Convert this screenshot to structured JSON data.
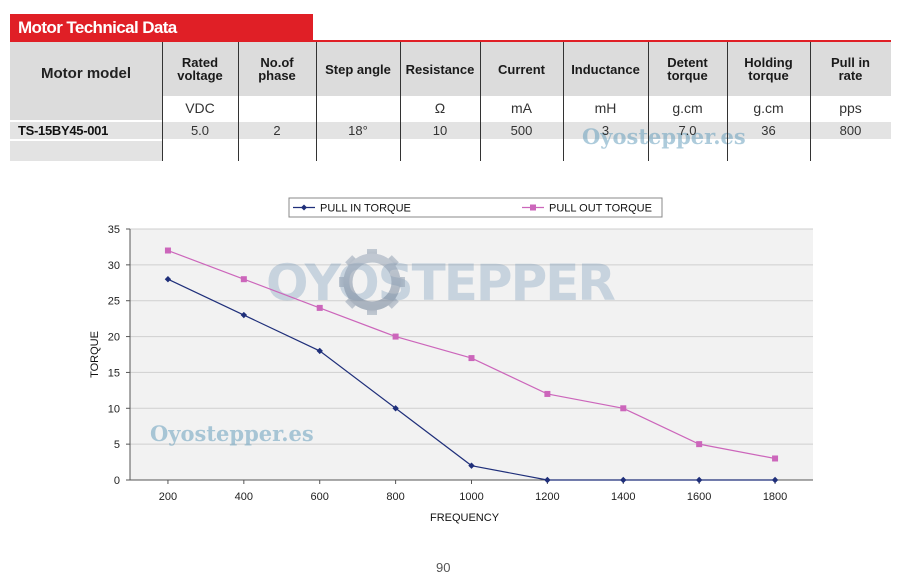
{
  "header": {
    "title": "Motor Technical Data"
  },
  "table": {
    "model_header": "Motor model",
    "columns": [
      {
        "label_lines": [
          "Rated",
          "voltage"
        ],
        "unit": "VDC",
        "value": "5.0"
      },
      {
        "label_lines": [
          "No.of",
          "phase"
        ],
        "unit": "",
        "value": "2"
      },
      {
        "label_lines": [
          "Step angle"
        ],
        "unit": "",
        "value": "18°"
      },
      {
        "label_lines": [
          "Resistance"
        ],
        "unit": "Ω",
        "value": "10"
      },
      {
        "label_lines": [
          "Current"
        ],
        "unit": "mA",
        "value": "500"
      },
      {
        "label_lines": [
          "Inductance"
        ],
        "unit": "mH",
        "value": "3"
      },
      {
        "label_lines": [
          "Detent",
          "torque"
        ],
        "unit": "g.cm",
        "value": "7.0"
      },
      {
        "label_lines": [
          "Holding",
          "torque"
        ],
        "unit": "g.cm",
        "value": "36"
      },
      {
        "label_lines": [
          "Pull in",
          "rate"
        ],
        "unit": "pps",
        "value": "800"
      }
    ],
    "model": "TS-15BY45-001"
  },
  "watermarks": {
    "table_text": "Oyostepper.es",
    "chart_logo": "OYOSTEPPER",
    "chart_text": "Oyostepper.es"
  },
  "colors": {
    "banner": "#e01f26",
    "pull_in": "#1f2f7a",
    "pull_out": "#cc66bb",
    "plot_bg": "#f2f2f2"
  },
  "chart_data": {
    "type": "line",
    "xlabel": "FREQUENCY",
    "ylabel": "TORQUE",
    "x": [
      200,
      400,
      600,
      800,
      1000,
      1200,
      1400,
      1600,
      1800
    ],
    "xlim": [
      100,
      1900
    ],
    "ylim": [
      0,
      35
    ],
    "yticks": [
      0,
      5,
      10,
      15,
      20,
      25,
      30,
      35
    ],
    "grid": true,
    "legend": "top",
    "series": [
      {
        "name": "PULL IN TORQUE",
        "marker": "diamond",
        "color": "#1f2f7a",
        "values": [
          28,
          23,
          18,
          10,
          2,
          0,
          0,
          0,
          0
        ]
      },
      {
        "name": "PULL OUT TORQUE",
        "marker": "square",
        "color": "#cc66bb",
        "values": [
          32,
          28,
          24,
          20,
          17,
          12,
          10,
          5,
          3
        ]
      }
    ]
  },
  "page": {
    "footer_number": "90"
  }
}
